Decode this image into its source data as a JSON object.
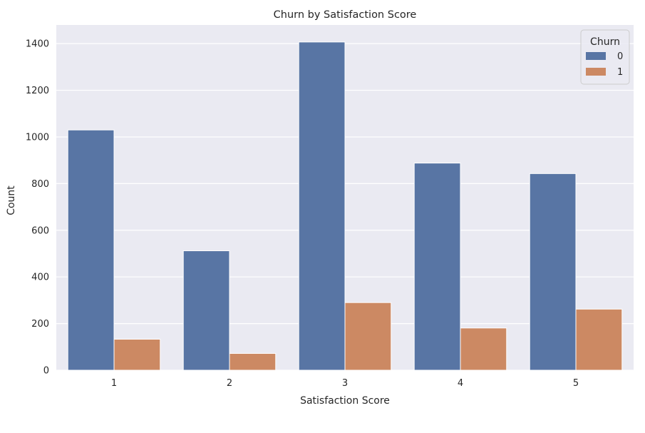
{
  "chart_data": {
    "type": "bar",
    "title": "Churn by Satisfaction Score",
    "xlabel": "Satisfaction Score",
    "ylabel": "Count",
    "categories": [
      "1",
      "2",
      "3",
      "4",
      "5"
    ],
    "series": [
      {
        "name": "0",
        "values": [
          1030,
          512,
          1407,
          888,
          843
        ],
        "color": "#5875a4"
      },
      {
        "name": "1",
        "values": [
          133,
          72,
          290,
          181,
          262
        ],
        "color": "#cc8963"
      }
    ],
    "yticks": [
      0,
      200,
      400,
      600,
      800,
      1000,
      1200,
      1400
    ],
    "ylim": [
      0,
      1480
    ],
    "grid": true,
    "legend": {
      "title": "Churn",
      "placement": "top-right"
    },
    "colors": {
      "plot_background": "#eaeaf2",
      "grid": "#ffffff"
    }
  }
}
